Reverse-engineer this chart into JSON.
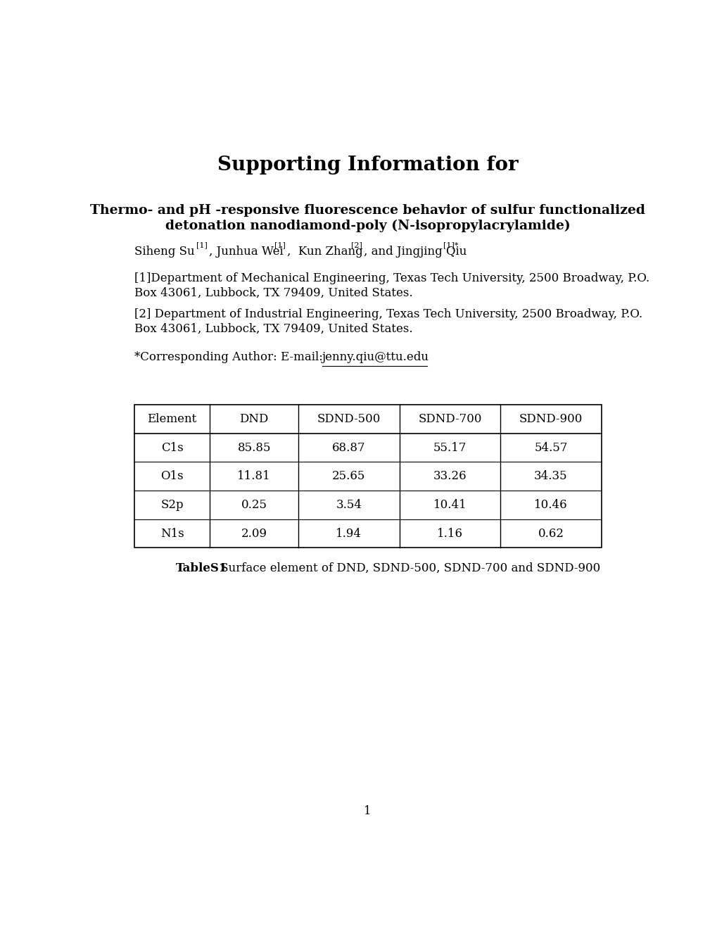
{
  "title": "Supporting Information for",
  "subtitle_line1": "Thermo- and pH -responsive fluorescence behavior of sulfur functionalized",
  "subtitle_line2": "detonation nanodiamond-poly (N-isopropylacrylamide)",
  "affil1_line1": "[1]Department of Mechanical Engineering, Texas Tech University, 2500 Broadway, P.O.",
  "affil1_line2": "Box 43061, Lubbock, TX 79409, United States.",
  "affil2_line1": "[2] Department of Industrial Engineering, Texas Tech University, 2500 Broadway, P.O.",
  "affil2_line2": "Box 43061, Lubbock, TX 79409, United States.",
  "corr_prefix": "*Corresponding Author: E-mail: ",
  "corr_email": "jenny.qiu@ttu.edu",
  "table_headers": [
    "Element",
    "DND",
    "SDND-500",
    "SDND-700",
    "SDND-900"
  ],
  "table_rows": [
    [
      "C1s",
      "85.85",
      "68.87",
      "55.17",
      "54.57"
    ],
    [
      "O1s",
      "11.81",
      "25.65",
      "33.26",
      "34.35"
    ],
    [
      "S2p",
      "0.25",
      "3.54",
      "10.41",
      "10.46"
    ],
    [
      "N1s",
      "2.09",
      "1.94",
      "1.16",
      "0.62"
    ]
  ],
  "table_caption_bold": "TableS1",
  "table_caption_normal": " Surface element of DND, SDND-500, SDND-700 and SDND-900",
  "page_number": "1",
  "bg_color": "#ffffff",
  "text_color": "#000000"
}
